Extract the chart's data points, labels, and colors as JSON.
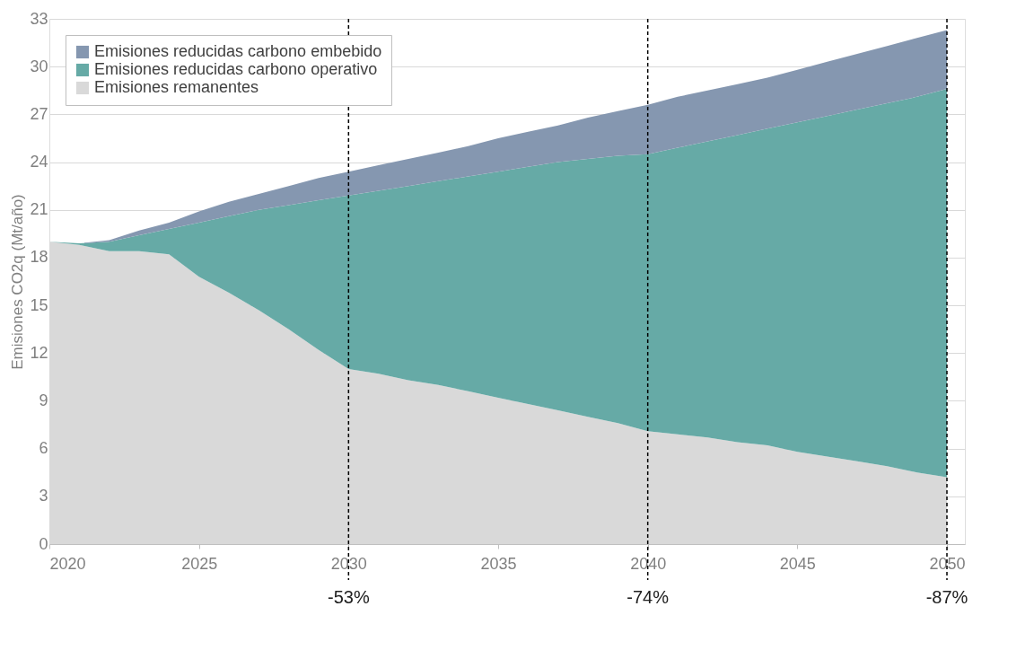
{
  "chart_data": {
    "type": "area",
    "stacked": true,
    "ylabel": "Emisiones CO2q (Mt/año)",
    "x": [
      2020,
      2021,
      2022,
      2023,
      2024,
      2025,
      2026,
      2027,
      2028,
      2029,
      2030,
      2031,
      2032,
      2033,
      2034,
      2035,
      2036,
      2037,
      2038,
      2039,
      2040,
      2041,
      2042,
      2043,
      2044,
      2045,
      2046,
      2047,
      2048,
      2049,
      2050
    ],
    "series": [
      {
        "name": "Emisiones remanentes",
        "color": "#d9d9d9",
        "values": [
          19.0,
          18.8,
          18.4,
          18.4,
          18.2,
          16.8,
          15.8,
          14.7,
          13.5,
          12.2,
          11.0,
          10.7,
          10.3,
          10.0,
          9.6,
          9.2,
          8.8,
          8.4,
          8.0,
          7.6,
          7.1,
          6.9,
          6.7,
          6.4,
          6.2,
          5.8,
          5.5,
          5.2,
          4.9,
          4.5,
          4.2
        ]
      },
      {
        "name": "Emisiones reducidas carbono operativo",
        "color": "#66aaa6",
        "values": [
          0.0,
          0.1,
          0.6,
          1.0,
          1.6,
          3.4,
          4.8,
          6.3,
          7.8,
          9.4,
          10.9,
          11.5,
          12.2,
          12.8,
          13.5,
          14.2,
          14.9,
          15.6,
          16.2,
          16.8,
          17.4,
          18.0,
          18.6,
          19.3,
          19.9,
          20.7,
          21.4,
          22.1,
          22.8,
          23.6,
          24.4
        ]
      },
      {
        "name": "Emisiones reducidas carbono embebido",
        "color": "#8597b0",
        "values": [
          0.0,
          0.0,
          0.1,
          0.3,
          0.4,
          0.7,
          0.9,
          1.0,
          1.2,
          1.4,
          1.5,
          1.6,
          1.7,
          1.8,
          1.9,
          2.1,
          2.2,
          2.3,
          2.6,
          2.8,
          3.1,
          3.2,
          3.2,
          3.2,
          3.2,
          3.3,
          3.4,
          3.5,
          3.6,
          3.7,
          3.7
        ]
      }
    ],
    "xlim": [
      2020,
      2050.6
    ],
    "xticks": [
      2020,
      2025,
      2030,
      2035,
      2040,
      2045,
      2050
    ],
    "ylim": [
      0,
      33
    ],
    "yticks": [
      0,
      3,
      6,
      9,
      12,
      15,
      18,
      21,
      24,
      27,
      30,
      33
    ],
    "grid": "y",
    "legend": "top left",
    "ref_lines": [
      {
        "axis": "x",
        "value": 2030,
        "line_style": "dashed",
        "color": "#000000"
      },
      {
        "axis": "x",
        "value": 2040,
        "line_style": "dashed",
        "color": "#000000"
      },
      {
        "axis": "x",
        "value": 2050,
        "line_style": "dashed",
        "color": "#000000"
      }
    ],
    "annotations": [
      "-53%",
      "-74%",
      "-87%"
    ]
  }
}
